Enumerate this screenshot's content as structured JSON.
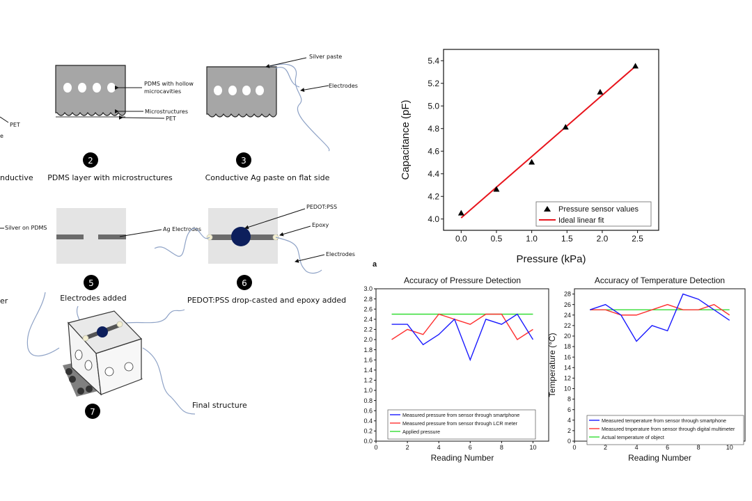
{
  "diagram": {
    "labels": {
      "pet1": "PET",
      "e_frag": "e",
      "nductive": "nductive",
      "silver_on_pdms": "Silver on PDMS",
      "er_frag": "er",
      "pdms_hollow": "PDMS with hollow microcavities",
      "microstructures": "Microstructures",
      "pet2": "PET",
      "silver_paste": "Silver paste",
      "electrodes3": "Electrodes",
      "ag_electrodes": "Ag Electrodes",
      "pedot_pss": "PEDOT:PSS",
      "epoxy": "Epoxy",
      "electrodes6": "Electrodes",
      "final_structure": "Final structure",
      "panel_a": "a"
    },
    "steps": [
      {
        "num": "2",
        "caption": "PDMS layer with microstructures"
      },
      {
        "num": "3",
        "caption": "Conductive Ag paste on flat side"
      },
      {
        "num": "5",
        "caption": "Electrodes added"
      },
      {
        "num": "6",
        "caption": "PEDOT:PSS drop-casted and epoxy added"
      },
      {
        "num": "7",
        "caption": ""
      }
    ]
  },
  "chart_data": [
    {
      "type": "scatter",
      "title": "",
      "xlabel": "Pressure (kPa)",
      "ylabel": "Capacitance (pF)",
      "xlim": [
        -0.25,
        2.8
      ],
      "ylim": [
        3.9,
        5.5
      ],
      "xticks": [
        "0.0",
        "0.5",
        "1.0",
        "1.5",
        "2.0",
        "2.5"
      ],
      "yticks": [
        "4.0",
        "4.2",
        "4.4",
        "4.6",
        "4.8",
        "5.0",
        "5.2",
        "5.4"
      ],
      "series": [
        {
          "name": "Pressure sensor values",
          "x": [
            0.0,
            0.5,
            1.0,
            1.48,
            1.97,
            2.47
          ],
          "y": [
            4.05,
            4.26,
            4.5,
            4.81,
            5.12,
            5.35
          ],
          "color": "#000000"
        },
        {
          "name": "Ideal linear fit",
          "x": [
            0.0,
            2.47
          ],
          "y": [
            4.01,
            5.35
          ],
          "color": "#e8141c"
        }
      ],
      "legend": "bottom-right"
    },
    {
      "type": "line",
      "title": "Accuracy of Pressure Detection",
      "xlabel": "Reading Number",
      "ylabel": "",
      "xlim": [
        0,
        11
      ],
      "ylim": [
        0.0,
        3.0
      ],
      "xticks": [
        "0",
        "2",
        "4",
        "6",
        "8",
        "10"
      ],
      "yticks": [
        "0.0",
        "0.2",
        "0.4",
        "0.6",
        "0.8",
        "1.0",
        "1.2",
        "1.4",
        "1.6",
        "1.8",
        "2.0",
        "2.2",
        "2.4",
        "2.6",
        "2.8",
        "3.0"
      ],
      "x": [
        1,
        2,
        3,
        4,
        5,
        6,
        7,
        8,
        9,
        10
      ],
      "series": [
        {
          "name": "Measured pressure from sensor through smartphone",
          "values": [
            2.3,
            2.3,
            1.9,
            2.1,
            2.4,
            1.6,
            2.4,
            2.3,
            2.5,
            2.0
          ],
          "color": "#1a1aff"
        },
        {
          "name": "Measured pressure from sensor through LCR meter",
          "values": [
            2.0,
            2.2,
            2.1,
            2.5,
            2.4,
            2.3,
            2.5,
            2.5,
            2.0,
            2.2
          ],
          "color": "#ff3030"
        },
        {
          "name": "Applied pressure",
          "values": [
            2.5,
            2.5,
            2.5,
            2.5,
            2.5,
            2.5,
            2.5,
            2.5,
            2.5,
            2.5
          ],
          "color": "#33dd33"
        }
      ],
      "legend": "bottom-left"
    },
    {
      "type": "line",
      "title": "Accuracy of Temperature Detection",
      "xlabel": "Reading Number",
      "ylabel": "Temperature (°C)",
      "xlim": [
        0,
        11
      ],
      "ylim": [
        0,
        29
      ],
      "xticks": [
        "0",
        "2",
        "4",
        "6",
        "8",
        "10"
      ],
      "yticks": [
        "0",
        "2",
        "4",
        "6",
        "8",
        "10",
        "12",
        "14",
        "16",
        "18",
        "20",
        "22",
        "24",
        "26",
        "28"
      ],
      "x": [
        1,
        2,
        3,
        4,
        5,
        6,
        7,
        8,
        9,
        10
      ],
      "series": [
        {
          "name": "Measured temperature from sensor through smartphone",
          "values": [
            25,
            26,
            24,
            19,
            22,
            21,
            28,
            27,
            25,
            23
          ],
          "color": "#1a1aff"
        },
        {
          "name": "Measured tmperature from sensor through digital multimeter",
          "values": [
            25,
            25,
            24,
            24,
            25,
            26,
            25,
            25,
            26,
            24
          ],
          "color": "#ff3030"
        },
        {
          "name": "Actual temperature of object",
          "values": [
            25,
            25,
            25,
            25,
            25,
            25,
            25,
            25,
            25,
            25
          ],
          "color": "#33dd33"
        }
      ],
      "legend": "bottom-left"
    }
  ]
}
